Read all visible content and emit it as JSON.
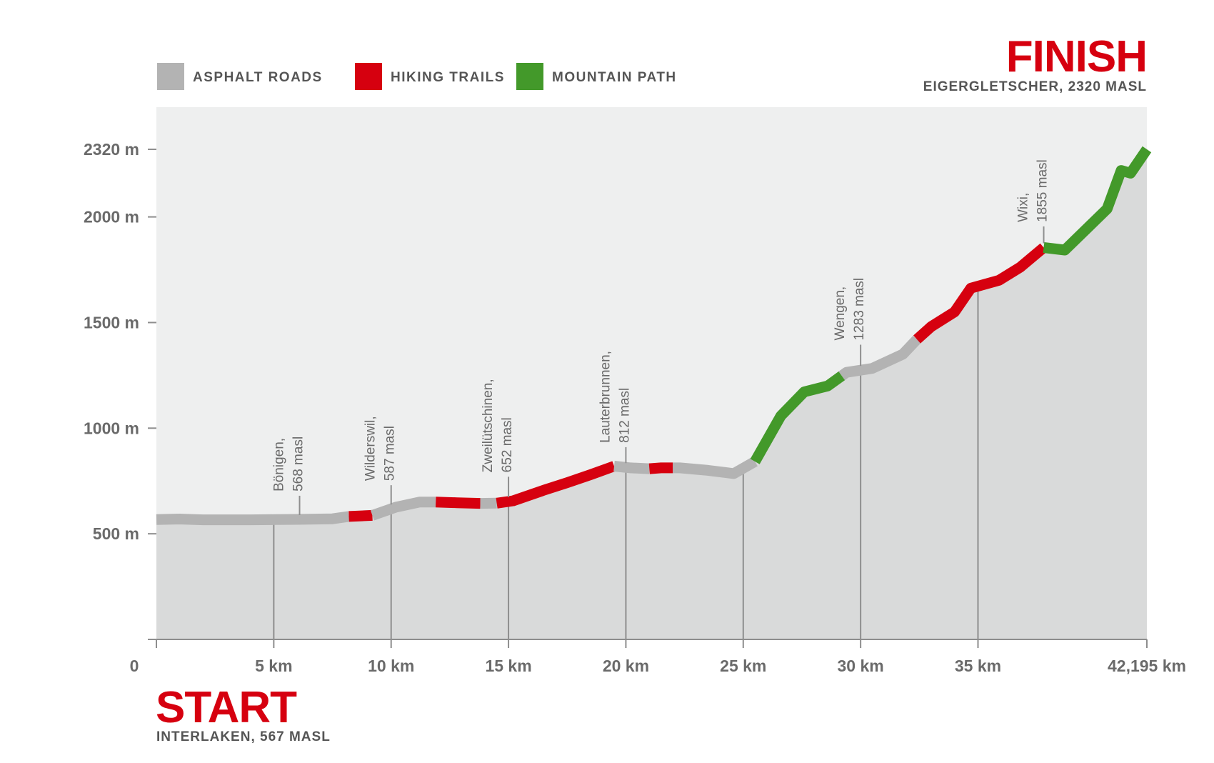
{
  "legend": [
    {
      "label": "ASPHALT ROADS",
      "color": "#b3b3b3"
    },
    {
      "label": "HIKING TRAILS",
      "color": "#d6000f"
    },
    {
      "label": "MOUNTAIN PATH",
      "color": "#43992a"
    }
  ],
  "finish": {
    "title": "FINISH",
    "subtitle": "EIGERGLETSCHER, 2320 MASL"
  },
  "start": {
    "title": "START",
    "subtitle": "INTERLAKEN, 567 MASL"
  },
  "colors": {
    "asphalt": "#b3b3b3",
    "hiking": "#d6000f",
    "mountain": "#43992a",
    "area": "#d9dada",
    "plot_bg": "#eeefef",
    "accent": "#d6000f"
  },
  "chart_data": {
    "type": "area",
    "xlabel": "",
    "ylabel": "",
    "xlim": [
      0,
      42.195
    ],
    "ylim": [
      0,
      2320
    ],
    "y_ticks": [
      {
        "value": 500,
        "label": "500 m"
      },
      {
        "value": 1000,
        "label": "1000 m"
      },
      {
        "value": 1500,
        "label": "1500 m"
      },
      {
        "value": 2000,
        "label": "2000 m"
      },
      {
        "value": 2320,
        "label": "2320 m"
      }
    ],
    "x_ticks": [
      {
        "value": 0,
        "label": "0"
      },
      {
        "value": 5,
        "label": "5 km"
      },
      {
        "value": 10,
        "label": "10 km"
      },
      {
        "value": 15,
        "label": "15 km"
      },
      {
        "value": 20,
        "label": "20 km"
      },
      {
        "value": 25,
        "label": "25 km"
      },
      {
        "value": 30,
        "label": "30 km"
      },
      {
        "value": 35,
        "label": "35 km"
      },
      {
        "value": 42.195,
        "label": "42,195 km"
      }
    ],
    "profile": [
      {
        "x": 0,
        "y": 567
      },
      {
        "x": 1,
        "y": 570
      },
      {
        "x": 2,
        "y": 566
      },
      {
        "x": 3,
        "y": 566
      },
      {
        "x": 4,
        "y": 566
      },
      {
        "x": 5,
        "y": 567
      },
      {
        "x": 6,
        "y": 568
      },
      {
        "x": 7,
        "y": 570
      },
      {
        "x": 7.5,
        "y": 571
      },
      {
        "x": 8.2,
        "y": 582
      },
      {
        "x": 9.2,
        "y": 587
      },
      {
        "x": 10.2,
        "y": 626
      },
      {
        "x": 11.2,
        "y": 650
      },
      {
        "x": 11.9,
        "y": 650
      },
      {
        "x": 12.8,
        "y": 647
      },
      {
        "x": 13.8,
        "y": 644
      },
      {
        "x": 14.5,
        "y": 645
      },
      {
        "x": 15.2,
        "y": 656
      },
      {
        "x": 16.5,
        "y": 706
      },
      {
        "x": 17.5,
        "y": 742
      },
      {
        "x": 18.5,
        "y": 780
      },
      {
        "x": 19.5,
        "y": 820
      },
      {
        "x": 20.2,
        "y": 812
      },
      {
        "x": 21,
        "y": 808
      },
      {
        "x": 21.5,
        "y": 812
      },
      {
        "x": 22.3,
        "y": 812
      },
      {
        "x": 23.5,
        "y": 800
      },
      {
        "x": 24.6,
        "y": 785
      },
      {
        "x": 25.5,
        "y": 842
      },
      {
        "x": 26.6,
        "y": 1058
      },
      {
        "x": 27.6,
        "y": 1172
      },
      {
        "x": 28.6,
        "y": 1200
      },
      {
        "x": 29.4,
        "y": 1264
      },
      {
        "x": 30.5,
        "y": 1283
      },
      {
        "x": 31.8,
        "y": 1350
      },
      {
        "x": 32.4,
        "y": 1420
      },
      {
        "x": 33,
        "y": 1480
      },
      {
        "x": 34,
        "y": 1550
      },
      {
        "x": 34.7,
        "y": 1663
      },
      {
        "x": 35.9,
        "y": 1700
      },
      {
        "x": 36.8,
        "y": 1762
      },
      {
        "x": 37.8,
        "y": 1855
      },
      {
        "x": 38.7,
        "y": 1843
      },
      {
        "x": 40.5,
        "y": 2038
      },
      {
        "x": 41.1,
        "y": 2220
      },
      {
        "x": 41.5,
        "y": 2207
      },
      {
        "x": 42.195,
        "y": 2320
      }
    ],
    "segments": [
      {
        "surface": "asphalt",
        "from": 0,
        "to": 8.2
      },
      {
        "surface": "hiking",
        "from": 8.2,
        "to": 9.2
      },
      {
        "surface": "asphalt",
        "from": 9.2,
        "to": 11.9
      },
      {
        "surface": "hiking",
        "from": 11.9,
        "to": 13.8
      },
      {
        "surface": "asphalt",
        "from": 13.8,
        "to": 14.5
      },
      {
        "surface": "hiking",
        "from": 14.5,
        "to": 19.5
      },
      {
        "surface": "asphalt",
        "from": 19.5,
        "to": 21
      },
      {
        "surface": "hiking",
        "from": 21,
        "to": 22
      },
      {
        "surface": "asphalt",
        "from": 22,
        "to": 25.5
      },
      {
        "surface": "mountain",
        "from": 25.5,
        "to": 29.2
      },
      {
        "surface": "asphalt",
        "from": 29.2,
        "to": 32.4
      },
      {
        "surface": "hiking",
        "from": 32.4,
        "to": 37.8
      },
      {
        "surface": "mountain",
        "from": 37.8,
        "to": 42.195
      }
    ],
    "checkpoints": [
      {
        "x": 6.1,
        "elevation": 568,
        "name": "Bönigen,",
        "detail": "568 masl",
        "line_top": 680
      },
      {
        "x": 10,
        "elevation": 587,
        "name": "Wilderswil,",
        "detail": "587 masl",
        "line_top": 730
      },
      {
        "x": 15,
        "elevation": 652,
        "name": "Zweilütschinen,",
        "detail": "652 masl",
        "line_top": 770
      },
      {
        "x": 20,
        "elevation": 812,
        "name": "Lauterbrunnen,",
        "detail": "812 masl",
        "line_top": 910
      },
      {
        "x": 30,
        "elevation": 1283,
        "name": "Wengen,",
        "detail": "1283 masl",
        "line_top": 1395
      },
      {
        "x": 37.8,
        "elevation": 1855,
        "name": "Wixi,",
        "detail": "1855 masl",
        "line_top": 1955
      }
    ],
    "grid_lines_x": [
      5,
      10,
      15,
      20,
      25,
      30,
      35
    ]
  }
}
